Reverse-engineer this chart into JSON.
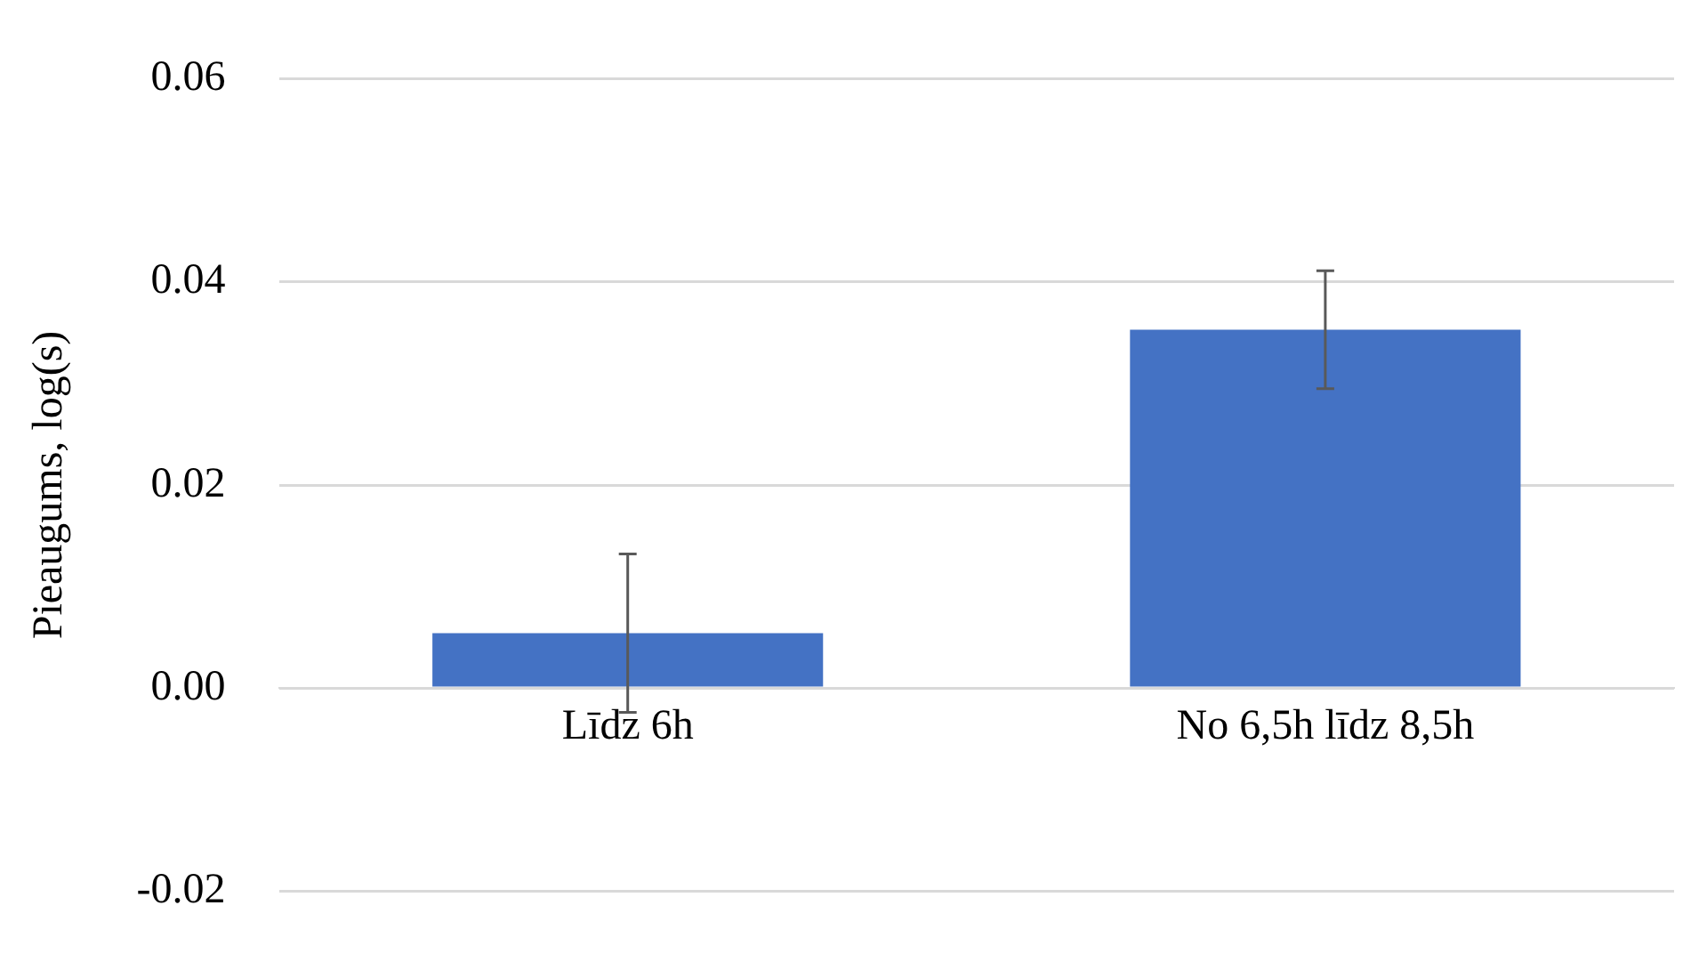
{
  "chart_data": {
    "type": "bar",
    "ylabel": "Pieaugums, log(s)",
    "categories": [
      "Līdz 6h",
      "No 6,5h līdz 8,5h"
    ],
    "series": [
      {
        "color": "#4472c4",
        "values": [
          0.0054,
          0.0353
        ],
        "errors": [
          0.0078,
          0.0058
        ]
      }
    ],
    "ylim": [
      -0.02,
      0.06
    ],
    "yticks": [
      {
        "value": -0.02,
        "label": "-0.02"
      },
      {
        "value": 0,
        "label": "0.00"
      },
      {
        "value": 0.02,
        "label": "0.02"
      },
      {
        "value": 0.04,
        "label": "0.04"
      },
      {
        "value": 0.06,
        "label": "0.06"
      }
    ],
    "grid": "y",
    "legend": false
  }
}
